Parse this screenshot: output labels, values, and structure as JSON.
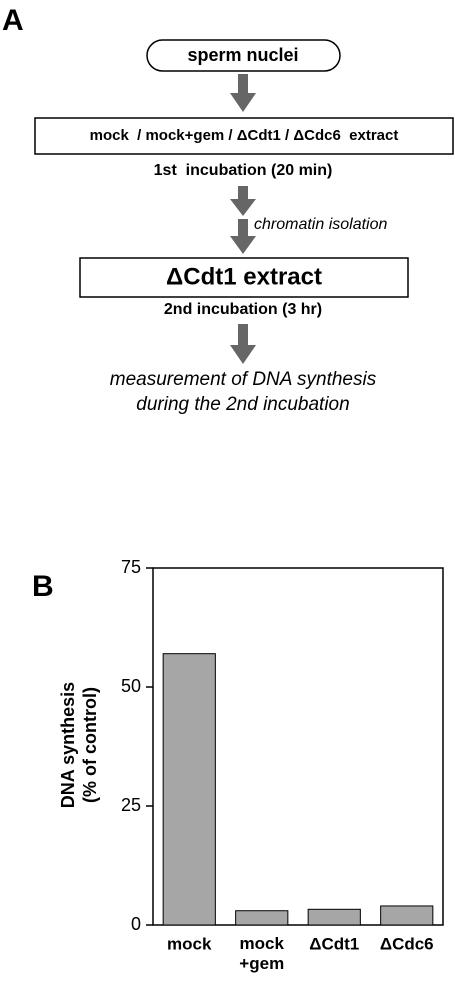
{
  "panel_a": {
    "label": "A",
    "start": "sperm nuclei",
    "step1_box": "mock  / mock+gem / ΔCdt1 / ΔCdc6  extract",
    "step1_note": "1st  incubation (20 min)",
    "transfer_note": "chromatin isolation",
    "step2_box": "ΔCdt1 extract",
    "step2_note": "2nd incubation (3 hr)",
    "result": "measurement of DNA synthesis\nduring the 2nd incubation"
  },
  "chart_data": {
    "type": "bar",
    "panel_label": "B",
    "y_label": "DNA synthesis\n(% of control)",
    "categories": [
      "mock",
      "mock\n+gem",
      "ΔCdt1",
      "ΔCdc6"
    ],
    "values": [
      57,
      3,
      3.3,
      4
    ],
    "color": "#a6a6a6",
    "ylim": [
      0,
      75
    ],
    "yticks": [
      0,
      25,
      50,
      75
    ],
    "grid": false
  }
}
